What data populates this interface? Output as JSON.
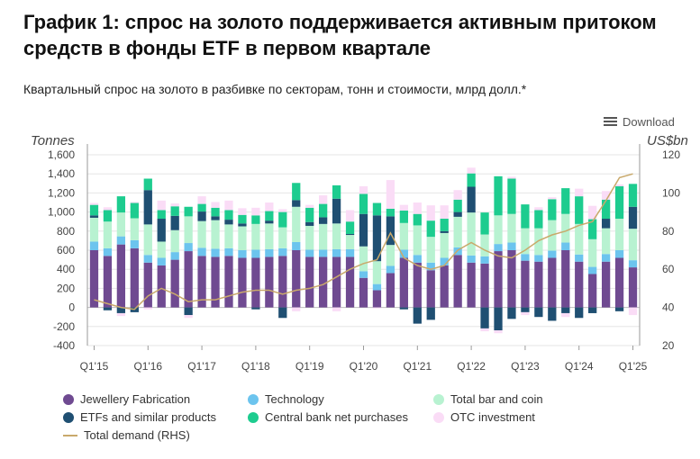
{
  "header": {
    "title": "График 1: спрос на золото поддерживается активным притоком средств в фонды ETF в первом квартале",
    "subtitle": "Квартальный спрос на золото в разбивке по секторам, тонн и стоимости, млрд долл.*",
    "download_label": "Download"
  },
  "colors": {
    "jewellery": "#6f4a91",
    "technology": "#6cc4ee",
    "bar_coin": "#b8f2d1",
    "etf": "#1f4f72",
    "central_bank": "#1dcc8f",
    "otc": "#fadcf6",
    "total_line": "#c9a96b"
  },
  "chart_data": {
    "type": "bar",
    "stacked": true,
    "left_axis_title": "Tonnes",
    "right_axis_title": "US$bn",
    "ylim": [
      -400,
      1600
    ],
    "y_ticks": [
      "1,600",
      "1,400",
      "1,200",
      "1,000",
      "800",
      "600",
      "400",
      "200",
      "0",
      "-200",
      "-400"
    ],
    "y2lim": [
      20,
      120
    ],
    "y2_ticks": [
      "120",
      "100",
      "80",
      "60",
      "40",
      "20"
    ],
    "x_tick_labels": [
      "Q1'15",
      "Q1'16",
      "Q1'17",
      "Q1'18",
      "Q1'19",
      "Q1'20",
      "Q1'21",
      "Q1'22",
      "Q1'23",
      "Q1'24",
      "Q1'25"
    ],
    "categories": [
      "Q1'15",
      "Q2'15",
      "Q3'15",
      "Q4'15",
      "Q1'16",
      "Q2'16",
      "Q3'16",
      "Q4'16",
      "Q1'17",
      "Q2'17",
      "Q3'17",
      "Q4'17",
      "Q1'18",
      "Q2'18",
      "Q3'18",
      "Q4'18",
      "Q1'19",
      "Q2'19",
      "Q3'19",
      "Q4'19",
      "Q1'20",
      "Q2'20",
      "Q3'20",
      "Q4'20",
      "Q1'21",
      "Q2'21",
      "Q3'21",
      "Q4'21",
      "Q1'22",
      "Q2'22",
      "Q3'22",
      "Q4'22",
      "Q1'23",
      "Q2'23",
      "Q3'23",
      "Q4'23",
      "Q1'24",
      "Q2'24",
      "Q3'24",
      "Q4'24",
      "Q1'25"
    ],
    "series": [
      {
        "key": "jewellery",
        "name": "Jewellery Fabrication",
        "values": [
          600,
          540,
          660,
          620,
          470,
          440,
          500,
          590,
          540,
          530,
          540,
          520,
          520,
          530,
          540,
          600,
          530,
          530,
          530,
          530,
          310,
          180,
          360,
          520,
          470,
          390,
          440,
          550,
          470,
          460,
          590,
          600,
          490,
          480,
          520,
          600,
          480,
          350,
          480,
          520,
          420
        ]
      },
      {
        "key": "technology",
        "name": "Technology",
        "values": [
          90,
          80,
          85,
          85,
          80,
          80,
          80,
          85,
          85,
          85,
          80,
          80,
          85,
          80,
          80,
          85,
          75,
          75,
          80,
          80,
          70,
          65,
          75,
          85,
          80,
          80,
          80,
          80,
          75,
          75,
          75,
          80,
          70,
          70,
          75,
          80,
          75,
          75,
          80,
          80,
          75
        ]
      },
      {
        "key": "bar_coin",
        "name": "Total bar and coin",
        "values": [
          250,
          280,
          250,
          230,
          320,
          170,
          230,
          280,
          280,
          300,
          250,
          250,
          270,
          270,
          220,
          370,
          250,
          270,
          270,
          150,
          260,
          240,
          220,
          280,
          310,
          270,
          260,
          320,
          450,
          230,
          300,
          300,
          270,
          280,
          320,
          300,
          320,
          290,
          270,
          330,
          330
        ]
      },
      {
        "key": "etf",
        "name": "ETFs and similar products",
        "values": [
          25,
          -30,
          -60,
          -50,
          360,
          240,
          150,
          -80,
          100,
          40,
          50,
          30,
          -20,
          30,
          -110,
          70,
          40,
          70,
          260,
          10,
          340,
          480,
          300,
          -20,
          -170,
          -130,
          20,
          50,
          270,
          -220,
          -240,
          -120,
          -50,
          -100,
          -140,
          -60,
          -110,
          -60,
          100,
          -40,
          230
        ]
      },
      {
        "key": "central_bank",
        "name": "Central bank net purchases",
        "values": [
          110,
          120,
          170,
          160,
          120,
          90,
          100,
          100,
          80,
          90,
          100,
          90,
          90,
          100,
          160,
          180,
          150,
          140,
          140,
          130,
          210,
          130,
          80,
          130,
          120,
          170,
          130,
          130,
          140,
          230,
          410,
          370,
          250,
          190,
          220,
          270,
          290,
          210,
          200,
          340,
          240
        ]
      },
      {
        "key": "otc",
        "name": "OTC investment",
        "values": [
          20,
          30,
          -30,
          10,
          -20,
          100,
          30,
          -30,
          80,
          60,
          100,
          70,
          80,
          90,
          30,
          -40,
          30,
          90,
          -40,
          120,
          80,
          -10,
          300,
          60,
          120,
          160,
          140,
          100,
          60,
          -30,
          -30,
          20,
          -30,
          30,
          20,
          -40,
          80,
          140,
          90,
          20,
          -80
        ]
      }
    ],
    "total_demand_rhs": {
      "name": "Total demand (RHS)",
      "values": [
        44,
        42,
        40,
        39,
        46,
        50,
        47,
        43,
        44,
        44,
        46,
        48,
        49,
        49,
        47,
        49,
        50,
        52,
        56,
        60,
        63,
        65,
        79,
        66,
        62,
        60,
        62,
        70,
        74,
        70,
        67,
        66,
        70,
        75,
        78,
        80,
        83,
        85,
        96,
        108,
        110
      ]
    }
  },
  "legend": [
    {
      "key": "jewellery",
      "label": "Jewellery Fabrication",
      "kind": "dot"
    },
    {
      "key": "technology",
      "label": "Technology",
      "kind": "dot"
    },
    {
      "key": "bar_coin",
      "label": "Total bar and coin",
      "kind": "dot"
    },
    {
      "key": "etf",
      "label": "ETFs and similar products",
      "kind": "dot"
    },
    {
      "key": "central_bank",
      "label": "Central bank net purchases",
      "kind": "dot"
    },
    {
      "key": "otc",
      "label": "OTC investment",
      "kind": "dot"
    },
    {
      "key": "total_line",
      "label": "Total demand (RHS)",
      "kind": "line"
    }
  ]
}
